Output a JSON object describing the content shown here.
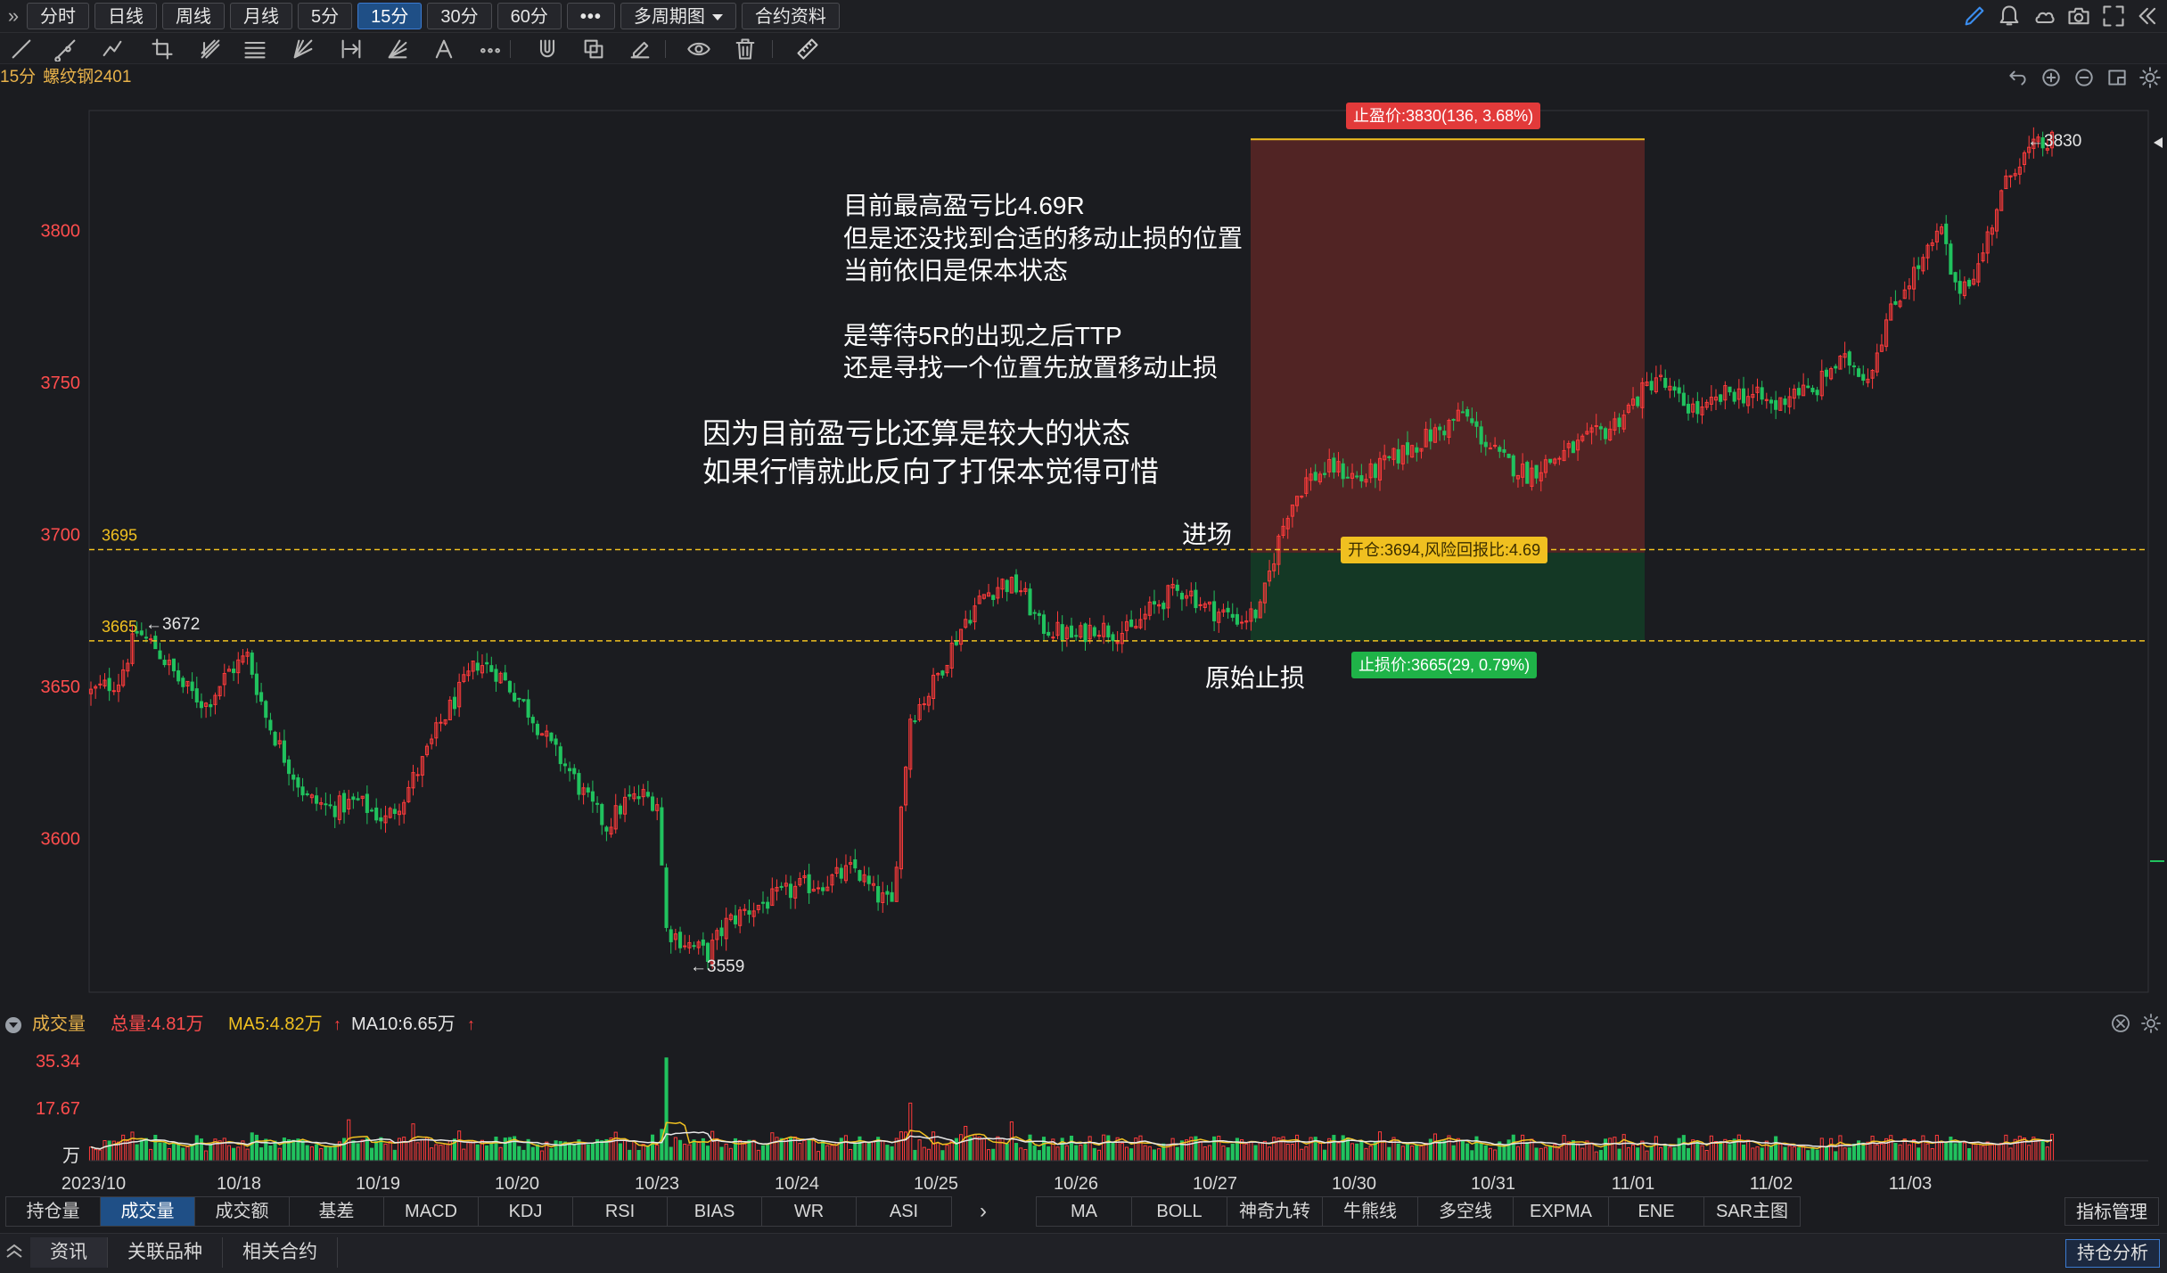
{
  "top_bar": {
    "collapse_glyph": "»",
    "period_tabs": [
      {
        "label": "分时",
        "active": false
      },
      {
        "label": "日线",
        "active": false
      },
      {
        "label": "周线",
        "active": false
      },
      {
        "label": "月线",
        "active": false
      },
      {
        "label": "5分",
        "active": false
      },
      {
        "label": "15分",
        "active": true
      },
      {
        "label": "30分",
        "active": false
      },
      {
        "label": "60分",
        "active": false
      },
      {
        "label": "•••",
        "active": false
      },
      {
        "label": "多周期图",
        "active": false,
        "dropdown": true
      },
      {
        "label": "合约资料",
        "active": false
      }
    ],
    "right_icons": [
      "pen-icon",
      "bell-icon",
      "cloud-icon",
      "camera-icon",
      "fullscreen-icon",
      "collapse-icon"
    ]
  },
  "drawing_toolbar": {
    "tools": [
      "line-tool-icon",
      "ray-tool-icon",
      "polyline-tool-icon",
      "crop-tool-icon",
      "pitchfork-tool-icon",
      "fib-tool-icon",
      "gann-tool-icon",
      "range-tool-icon",
      "fan-tool-icon",
      "text-tool-icon",
      "more-tools-icon",
      "magnet-icon",
      "clone-icon",
      "eraser-icon",
      "eye-icon",
      "trash-icon",
      "ruler-icon"
    ]
  },
  "chart_title": {
    "period": "15分",
    "name": "螺纹钢2401",
    "controls": [
      "undo-icon",
      "zoom-in-icon",
      "zoom-out-icon",
      "window-icon",
      "settings-icon"
    ]
  },
  "annotations": {
    "note_lines": [
      "目前最高盈亏比4.69R",
      "但是还没找到合适的移动止损的位置",
      "当前依旧是保本状态",
      "",
      "是等待5R的出现之后TTP",
      "还是寻找一个位置先放置移动止损"
    ],
    "reason_lines": [
      "因为目前盈亏比还算是较大的状态",
      "如果行情就此反向了打保本觉得可惜"
    ],
    "entry_label": "进场",
    "stop_label": "原始止损",
    "take_profit_tag": "止盈价:3830(136, 3.68%)",
    "open_tag": "开仓:3694,风险回报比:4.69",
    "stop_loss_tag": "止损价:3665(29, 0.79%)"
  },
  "chart_data": {
    "type": "candlestick",
    "instrument": "螺纹钢2401",
    "period": "15分",
    "y_ticks": [
      3600,
      3650,
      3700,
      3750,
      3800
    ],
    "ylim": [
      3535,
      3845
    ],
    "x_ticks": [
      "2023/10",
      "10/18",
      "10/19",
      "10/20",
      "10/23",
      "10/24",
      "10/25",
      "10/26",
      "10/27",
      "10/30",
      "10/31",
      "11/01",
      "11/02",
      "11/03"
    ],
    "anchors": [
      [
        0,
        3648
      ],
      [
        6,
        3652
      ],
      [
        10,
        3668
      ],
      [
        14,
        3663
      ],
      [
        20,
        3650
      ],
      [
        25,
        3644
      ],
      [
        30,
        3655
      ],
      [
        34,
        3660
      ],
      [
        38,
        3640
      ],
      [
        42,
        3627
      ],
      [
        47,
        3613
      ],
      [
        52,
        3610
      ],
      [
        58,
        3612
      ],
      [
        64,
        3606
      ],
      [
        68,
        3614
      ],
      [
        72,
        3625
      ],
      [
        76,
        3638
      ],
      [
        80,
        3648
      ],
      [
        84,
        3658
      ],
      [
        88,
        3655
      ],
      [
        92,
        3648
      ],
      [
        96,
        3640
      ],
      [
        100,
        3630
      ],
      [
        104,
        3622
      ],
      [
        108,
        3612
      ],
      [
        112,
        3604
      ],
      [
        116,
        3612
      ],
      [
        120,
        3614
      ],
      [
        123,
        3612
      ],
      [
        125,
        3570
      ],
      [
        130,
        3565
      ],
      [
        134,
        3562
      ],
      [
        138,
        3572
      ],
      [
        142,
        3576
      ],
      [
        148,
        3580
      ],
      [
        154,
        3584
      ],
      [
        160,
        3586
      ],
      [
        166,
        3590
      ],
      [
        170,
        3582
      ],
      [
        174,
        3578
      ],
      [
        176,
        3610
      ],
      [
        178,
        3640
      ],
      [
        182,
        3648
      ],
      [
        186,
        3660
      ],
      [
        190,
        3672
      ],
      [
        194,
        3680
      ],
      [
        198,
        3684
      ],
      [
        202,
        3682
      ],
      [
        206,
        3670
      ],
      [
        210,
        3668
      ],
      [
        214,
        3666
      ],
      [
        218,
        3670
      ],
      [
        222,
        3668
      ],
      [
        226,
        3668
      ],
      [
        230,
        3675
      ],
      [
        234,
        3680
      ],
      [
        238,
        3682
      ],
      [
        242,
        3676
      ],
      [
        246,
        3674
      ],
      [
        250,
        3672
      ],
      [
        254,
        3675
      ],
      [
        257,
        3693
      ],
      [
        260,
        3708
      ],
      [
        264,
        3718
      ],
      [
        270,
        3722
      ],
      [
        276,
        3718
      ],
      [
        282,
        3724
      ],
      [
        288,
        3730
      ],
      [
        294,
        3735
      ],
      [
        298,
        3740
      ],
      [
        302,
        3732
      ],
      [
        306,
        3725
      ],
      [
        312,
        3720
      ],
      [
        318,
        3725
      ],
      [
        324,
        3730
      ],
      [
        330,
        3735
      ],
      [
        336,
        3745
      ],
      [
        340,
        3752
      ],
      [
        344,
        3745
      ],
      [
        350,
        3740
      ],
      [
        356,
        3747
      ],
      [
        362,
        3745
      ],
      [
        366,
        3742
      ],
      [
        370,
        3748
      ],
      [
        374,
        3746
      ],
      [
        378,
        3755
      ],
      [
        382,
        3757
      ],
      [
        386,
        3752
      ],
      [
        390,
        3770
      ],
      [
        394,
        3782
      ],
      [
        398,
        3790
      ],
      [
        402,
        3800
      ],
      [
        405,
        3780
      ],
      [
        410,
        3788
      ],
      [
        414,
        3808
      ],
      [
        418,
        3822
      ],
      [
        422,
        3827
      ],
      [
        426,
        3829
      ]
    ],
    "candle_count": 427,
    "labels": {
      "high": "←3830",
      "low": "←3559",
      "left_high": "←3672"
    },
    "level_lines": [
      {
        "value": 3695,
        "label": "3695",
        "color": "#f0c020",
        "style": "dashed"
      },
      {
        "value": 3665,
        "label": "3665",
        "color": "#f0c020",
        "style": "dashed"
      }
    ],
    "position_box": {
      "entry": 3694,
      "take_profit": 3830,
      "stop_loss": 3665,
      "risk_reward": 4.69
    },
    "colors": {
      "up": "#ff3b3b",
      "down": "#21c25e",
      "axis_text": "#ff4d4d",
      "level": "#f0c020",
      "profit_zone": "#5a2626",
      "loss_zone": "#143a26"
    }
  },
  "volume": {
    "title": "成交量",
    "total": "总量:4.81万",
    "ma5": "MA5:4.82万",
    "ma10": "MA10:6.65万",
    "ma5_arrow": "↑",
    "ma10_arrow": "↑",
    "y_ticks": [
      "35.34",
      "17.67",
      "万"
    ],
    "y_values": [
      35.34,
      17.67
    ],
    "ma5_color": "#f0c020",
    "ma10_color": "#e6e6e6",
    "controls": [
      "close-circle-icon",
      "settings-icon"
    ]
  },
  "indicator_tabs": {
    "left": [
      {
        "label": "持仓量",
        "active": false
      },
      {
        "label": "成交量",
        "active": true
      },
      {
        "label": "成交额",
        "active": false
      },
      {
        "label": "基差",
        "active": false
      },
      {
        "label": "MACD",
        "active": false
      },
      {
        "label": "KDJ",
        "active": false
      },
      {
        "label": "RSI",
        "active": false
      },
      {
        "label": "BIAS",
        "active": false
      },
      {
        "label": "WR",
        "active": false
      },
      {
        "label": "ASI",
        "active": false
      }
    ],
    "right": [
      {
        "label": "MA"
      },
      {
        "label": "BOLL"
      },
      {
        "label": "神奇九转"
      },
      {
        "label": "牛熊线"
      },
      {
        "label": "多空线"
      },
      {
        "label": "EXPMA"
      },
      {
        "label": "ENE"
      },
      {
        "label": "SAR主图"
      }
    ],
    "next_glyph": "›",
    "manage_label": "指标管理"
  },
  "bottom_bar": {
    "tabs": [
      {
        "label": "资讯",
        "active": true
      },
      {
        "label": "关联品种",
        "active": false
      },
      {
        "label": "相关合约",
        "active": false
      }
    ],
    "right_button": "持仓分析"
  }
}
